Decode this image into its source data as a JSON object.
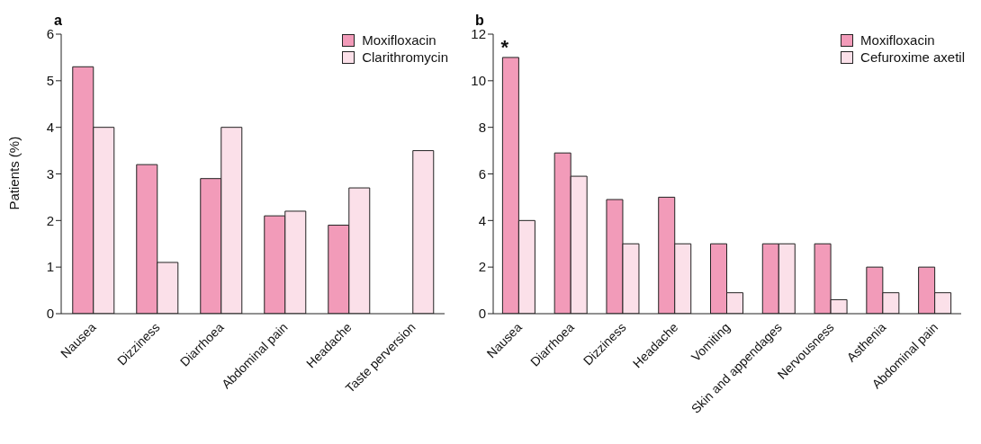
{
  "chart_data": [
    {
      "type": "bar",
      "title": "a",
      "ylabel": "Patients (%)",
      "categories": [
        "Nausea",
        "Dizziness",
        "Diarrhoea",
        "Abdominal pain",
        "Headache",
        "Taste perversion"
      ],
      "series": [
        {
          "name": "Moxifloxacin",
          "color": "#f29bb9",
          "values": [
            5.3,
            3.2,
            2.9,
            2.1,
            1.9,
            null
          ]
        },
        {
          "name": "Clarithromycin",
          "color": "#fbe0e9",
          "values": [
            4.0,
            1.1,
            4.0,
            2.2,
            2.7,
            3.5
          ]
        }
      ],
      "ylim": [
        0,
        6
      ],
      "yticks": [
        0,
        1,
        2,
        3,
        4,
        5,
        6
      ],
      "grid": false,
      "legend": "top right"
    },
    {
      "type": "bar",
      "title": "b",
      "categories": [
        "Nausea",
        "Diarrhoea",
        "Dizziness",
        "Headache",
        "Vomiting",
        "Skin and appendages",
        "Nervousness",
        "Asthenia",
        "Abdominal pain"
      ],
      "series": [
        {
          "name": "Moxifloxacin",
          "color": "#f29bb9",
          "values": [
            11,
            6.9,
            4.9,
            5,
            3,
            3,
            3,
            2,
            2
          ]
        },
        {
          "name": "Cefuroxime axetil",
          "color": "#fbe0e9",
          "values": [
            4,
            5.9,
            3,
            3,
            0.9,
            3,
            0.6,
            0.9,
            0.9
          ]
        }
      ],
      "annotations": [
        {
          "text": "*",
          "x": "Nausea",
          "y": 11
        }
      ],
      "ylim": [
        0,
        12
      ],
      "yticks": [
        0,
        2,
        4,
        6,
        8,
        10,
        12
      ],
      "grid": false,
      "legend": "top right"
    }
  ]
}
